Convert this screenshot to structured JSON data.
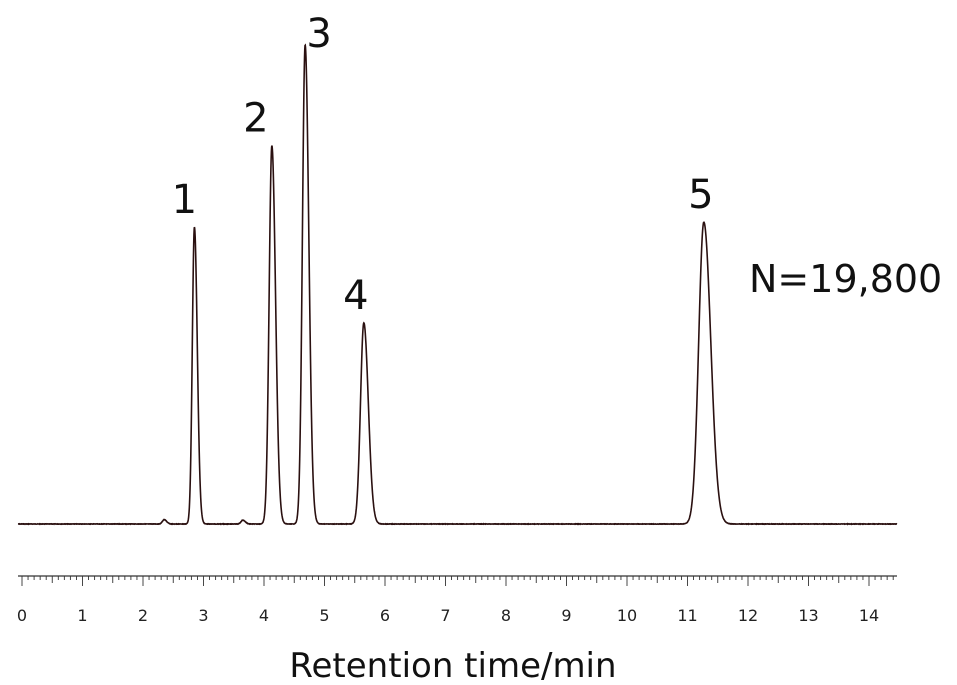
{
  "chart_data": {
    "type": "line",
    "title": "",
    "xlabel": "Retention time/min",
    "ylabel": "",
    "xlim": [
      0,
      14.6
    ],
    "ylim": [
      0,
      100
    ],
    "grid": false,
    "x_ticks": [
      "0",
      "1",
      "2",
      "3",
      "4",
      "5",
      "6",
      "7",
      "8",
      "9",
      "10",
      "11",
      "12",
      "13",
      "14"
    ],
    "line_color": "#2a1010",
    "peaks": [
      {
        "label": "1",
        "rt": 2.85,
        "height": 62,
        "sigma": 0.035
      },
      {
        "label": "2",
        "rt": 4.13,
        "height": 79,
        "sigma": 0.045
      },
      {
        "label": "3",
        "rt": 4.68,
        "height": 100,
        "sigma": 0.045
      },
      {
        "label": "4",
        "rt": 5.65,
        "height": 42,
        "sigma": 0.055
      },
      {
        "label": "5",
        "rt": 11.27,
        "height": 63,
        "sigma": 0.085
      }
    ],
    "minor_peaks": [
      {
        "rt": 2.35,
        "height": 0.9,
        "sigma": 0.03
      },
      {
        "rt": 3.65,
        "height": 0.8,
        "sigma": 0.03
      }
    ],
    "annotation": "N=19,800"
  }
}
